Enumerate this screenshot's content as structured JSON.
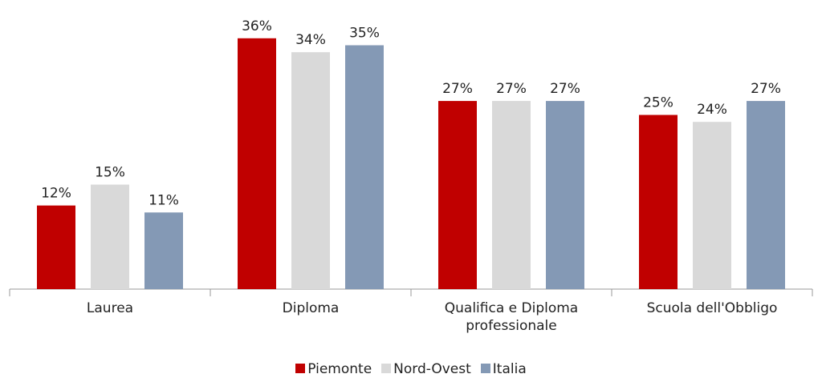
{
  "chart_data": {
    "type": "bar",
    "categories": [
      "Laurea",
      "Diploma",
      "Qualifica e Diploma professionale",
      "Scuola dell'Obbligo"
    ],
    "series": [
      {
        "name": "Piemonte",
        "color": "#c00000",
        "values": [
          12,
          36,
          27,
          25
        ],
        "value_labels": [
          "12%",
          "36%",
          "27%",
          "25%"
        ]
      },
      {
        "name": "Nord-Ovest",
        "color": "#d9d9d9",
        "values": [
          15,
          34,
          27,
          24
        ],
        "value_labels": [
          "15%",
          "34%",
          "27%",
          "24%"
        ]
      },
      {
        "name": "Italia",
        "color": "#8499b5",
        "values": [
          11,
          35,
          27,
          27
        ],
        "value_labels": [
          "11%",
          "35%",
          "27%",
          "27%"
        ]
      }
    ],
    "ylim": [
      0,
      40
    ],
    "grid": false,
    "legend": "bottom"
  }
}
